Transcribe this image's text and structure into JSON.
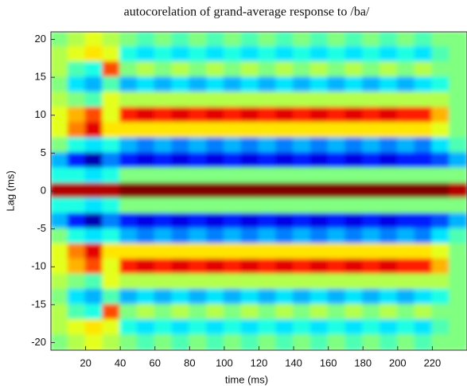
{
  "chart_data": {
    "type": "heatmap",
    "title": "autocorelation of grand-average response to /ba/",
    "x_label": "time (ms)",
    "y_label": "Lag (ms)",
    "x": [
      5,
      15,
      25,
      35,
      45,
      55,
      65,
      75,
      85,
      95,
      105,
      115,
      125,
      135,
      145,
      155,
      165,
      175,
      185,
      195,
      205,
      215,
      225,
      235
    ],
    "y": [
      20,
      18,
      16,
      14,
      12,
      10,
      8,
      6,
      4,
      2,
      0,
      -2,
      -4,
      -6,
      -8,
      -10,
      -12,
      -14,
      -16,
      -18,
      -20
    ],
    "colormap": "jet",
    "clim": [
      -1,
      1
    ],
    "xlim": [
      0,
      240
    ],
    "ylim": [
      -21,
      21
    ],
    "xticks": [
      20,
      40,
      60,
      80,
      100,
      120,
      140,
      160,
      180,
      200,
      220
    ],
    "yticks": [
      -20,
      -15,
      -10,
      -5,
      0,
      5,
      10,
      15,
      20
    ],
    "values": [
      [
        0,
        0.1,
        0.2,
        0.1,
        0,
        -0.1,
        0,
        -0.1,
        0,
        -0.1,
        0,
        -0.1,
        0,
        -0.1,
        0,
        -0.1,
        0,
        -0.1,
        0,
        -0.1,
        0,
        -0.1,
        0,
        0
      ],
      [
        0.1,
        0.2,
        0.3,
        0.2,
        -0.2,
        -0.3,
        -0.2,
        -0.3,
        -0.2,
        -0.3,
        -0.2,
        -0.3,
        -0.2,
        -0.3,
        -0.2,
        -0.3,
        -0.2,
        -0.3,
        -0.2,
        -0.3,
        -0.2,
        -0.3,
        -0.1,
        0
      ],
      [
        0.1,
        -0.1,
        -0.2,
        0.6,
        0,
        0.1,
        0,
        0.1,
        0,
        0.1,
        0,
        0.1,
        0,
        0.1,
        0,
        0.1,
        0,
        0.1,
        0,
        0.1,
        0,
        0.1,
        0,
        0
      ],
      [
        0,
        -0.3,
        -0.4,
        -0.1,
        -0.4,
        -0.3,
        -0.4,
        -0.3,
        -0.4,
        -0.3,
        -0.4,
        -0.3,
        -0.4,
        -0.3,
        -0.4,
        -0.3,
        -0.4,
        -0.3,
        -0.4,
        -0.3,
        -0.4,
        -0.3,
        -0.2,
        0
      ],
      [
        0.1,
        0,
        -0.1,
        0.2,
        0.1,
        0.1,
        0.1,
        0.1,
        0.1,
        0.1,
        0.1,
        0.1,
        0.1,
        0.1,
        0.1,
        0.1,
        0.1,
        0.1,
        0.1,
        0.1,
        0.1,
        0.1,
        0.1,
        0
      ],
      [
        0.2,
        0.4,
        0.6,
        0.2,
        0.7,
        0.8,
        0.7,
        0.8,
        0.7,
        0.8,
        0.7,
        0.8,
        0.7,
        0.8,
        0.7,
        0.8,
        0.7,
        0.8,
        0.7,
        0.8,
        0.7,
        0.7,
        0.4,
        0
      ],
      [
        0.2,
        0.5,
        0.8,
        0.3,
        0.3,
        0.3,
        0.3,
        0.3,
        0.3,
        0.3,
        0.3,
        0.3,
        0.3,
        0.3,
        0.3,
        0.3,
        0.3,
        0.3,
        0.3,
        0.3,
        0.3,
        0.3,
        0.2,
        0
      ],
      [
        0,
        -0.2,
        -0.3,
        -0.2,
        -0.4,
        -0.5,
        -0.4,
        -0.5,
        -0.4,
        -0.5,
        -0.4,
        -0.5,
        -0.4,
        -0.5,
        -0.4,
        -0.5,
        -0.4,
        -0.5,
        -0.4,
        -0.5,
        -0.4,
        -0.5,
        -0.3,
        -0.1
      ],
      [
        -0.4,
        -0.7,
        -0.9,
        -0.5,
        -0.7,
        -0.8,
        -0.7,
        -0.8,
        -0.7,
        -0.8,
        -0.7,
        -0.8,
        -0.7,
        -0.8,
        -0.7,
        -0.8,
        -0.7,
        -0.8,
        -0.7,
        -0.8,
        -0.7,
        -0.7,
        -0.6,
        -0.4
      ],
      [
        -0.2,
        -0.2,
        -0.3,
        -0.2,
        0,
        0,
        0,
        0,
        0,
        0,
        0,
        0,
        0,
        0,
        0,
        0,
        0,
        0,
        0,
        0,
        0,
        0,
        0,
        0
      ],
      [
        0.9,
        0.9,
        0.9,
        0.9,
        1,
        1,
        1,
        1,
        1,
        1,
        1,
        1,
        1,
        1,
        1,
        1,
        1,
        1,
        1,
        1,
        1,
        1,
        1,
        0.9
      ],
      [
        -0.2,
        -0.2,
        -0.3,
        -0.2,
        0,
        0,
        0,
        0,
        0,
        0,
        0,
        0,
        0,
        0,
        0,
        0,
        0,
        0,
        0,
        0,
        0,
        0,
        0,
        0
      ],
      [
        -0.4,
        -0.7,
        -0.9,
        -0.5,
        -0.7,
        -0.8,
        -0.7,
        -0.8,
        -0.7,
        -0.8,
        -0.7,
        -0.8,
        -0.7,
        -0.8,
        -0.7,
        -0.8,
        -0.7,
        -0.8,
        -0.7,
        -0.8,
        -0.7,
        -0.7,
        -0.6,
        -0.4
      ],
      [
        0,
        -0.2,
        -0.3,
        -0.2,
        -0.4,
        -0.5,
        -0.4,
        -0.5,
        -0.4,
        -0.5,
        -0.4,
        -0.5,
        -0.4,
        -0.5,
        -0.4,
        -0.5,
        -0.4,
        -0.5,
        -0.4,
        -0.5,
        -0.4,
        -0.5,
        -0.3,
        -0.1
      ],
      [
        0.2,
        0.5,
        0.8,
        0.3,
        0.3,
        0.3,
        0.3,
        0.3,
        0.3,
        0.3,
        0.3,
        0.3,
        0.3,
        0.3,
        0.3,
        0.3,
        0.3,
        0.3,
        0.3,
        0.3,
        0.3,
        0.3,
        0.2,
        0
      ],
      [
        0.2,
        0.4,
        0.6,
        0.2,
        0.7,
        0.8,
        0.7,
        0.8,
        0.7,
        0.8,
        0.7,
        0.8,
        0.7,
        0.8,
        0.7,
        0.8,
        0.7,
        0.8,
        0.7,
        0.8,
        0.7,
        0.7,
        0.4,
        0
      ],
      [
        0.1,
        0,
        -0.1,
        0.2,
        0.1,
        0.1,
        0.1,
        0.1,
        0.1,
        0.1,
        0.1,
        0.1,
        0.1,
        0.1,
        0.1,
        0.1,
        0.1,
        0.1,
        0.1,
        0.1,
        0.1,
        0.1,
        0.1,
        0
      ],
      [
        0,
        -0.3,
        -0.4,
        -0.1,
        -0.4,
        -0.3,
        -0.4,
        -0.3,
        -0.4,
        -0.3,
        -0.4,
        -0.3,
        -0.4,
        -0.3,
        -0.4,
        -0.3,
        -0.4,
        -0.3,
        -0.4,
        -0.3,
        -0.4,
        -0.3,
        -0.2,
        0
      ],
      [
        0.1,
        -0.1,
        -0.2,
        0.6,
        0,
        0.1,
        0,
        0.1,
        0,
        0.1,
        0,
        0.1,
        0,
        0.1,
        0,
        0.1,
        0,
        0.1,
        0,
        0.1,
        0,
        0.1,
        0,
        0
      ],
      [
        0.1,
        0.2,
        0.3,
        0.2,
        -0.2,
        -0.3,
        -0.2,
        -0.3,
        -0.2,
        -0.3,
        -0.2,
        -0.3,
        -0.2,
        -0.3,
        -0.2,
        -0.3,
        -0.2,
        -0.3,
        -0.2,
        -0.3,
        -0.2,
        -0.3,
        -0.1,
        0
      ],
      [
        0,
        0.1,
        0.2,
        0.1,
        0,
        -0.1,
        0,
        -0.1,
        0,
        -0.1,
        0,
        -0.1,
        0,
        -0.1,
        0,
        -0.1,
        0,
        -0.1,
        0,
        -0.1,
        0,
        -0.1,
        0,
        0
      ]
    ]
  }
}
